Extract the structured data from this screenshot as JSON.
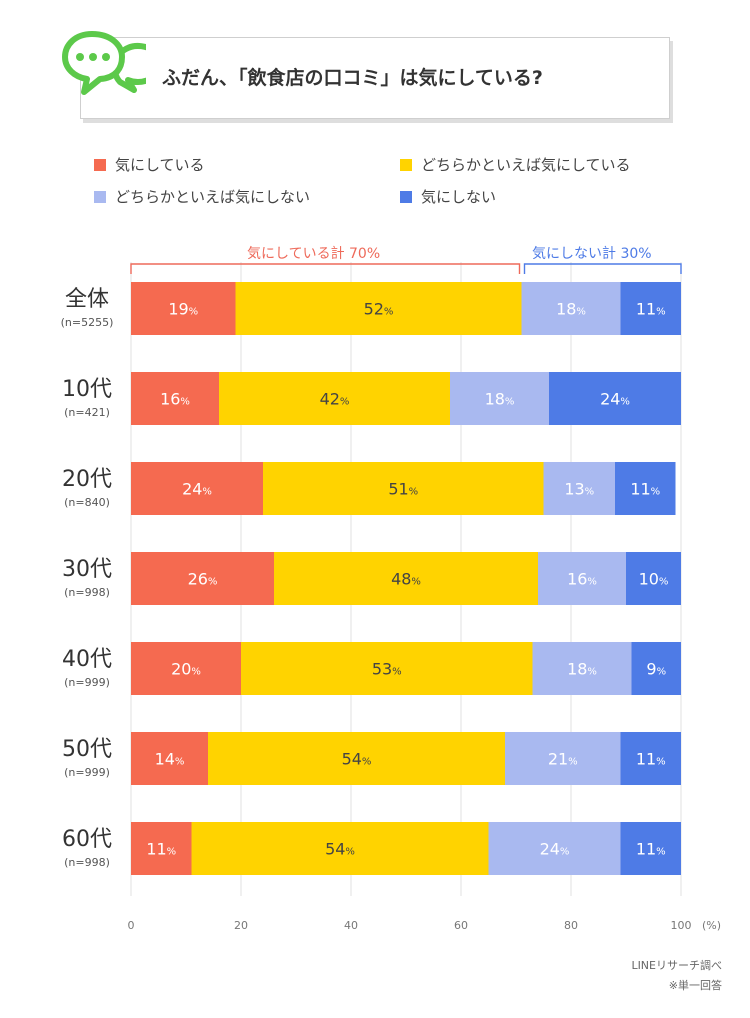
{
  "title": "ふだん、「飲食店の口コミ」は気にしている?",
  "legend": [
    {
      "label": "気にしている",
      "color": "#F56A50"
    },
    {
      "label": "どちらかといえば気にしている",
      "color": "#FFD300"
    },
    {
      "label": "どちらかといえば気にしない",
      "color": "#A9B9F0"
    },
    {
      "label": "気にしない",
      "color": "#4E7BE6"
    }
  ],
  "brackets": {
    "left": {
      "label": "気にしている計 70%",
      "color": "#EE6A5A"
    },
    "right": {
      "label": "気にしない計 30%",
      "color": "#4E7BE6"
    }
  },
  "chart_data": {
    "type": "bar",
    "orientation": "horizontal",
    "stacked": true,
    "categories": [
      "全体",
      "10代",
      "20代",
      "30代",
      "40代",
      "50代",
      "60代"
    ],
    "category_n": [
      "(n=5255)",
      "(n=421)",
      "(n=840)",
      "(n=998)",
      "(n=999)",
      "(n=999)",
      "(n=998)"
    ],
    "series": [
      {
        "name": "気にしている",
        "color": "#F56A50",
        "values": [
          19,
          16,
          24,
          26,
          20,
          14,
          11
        ]
      },
      {
        "name": "どちらかといえば気にしている",
        "color": "#FFD300",
        "values": [
          52,
          42,
          51,
          48,
          53,
          54,
          54
        ]
      },
      {
        "name": "どちらかといえば気にしない",
        "color": "#A9B9F0",
        "values": [
          18,
          18,
          13,
          16,
          18,
          21,
          24
        ]
      },
      {
        "name": "気にしない",
        "color": "#4E7BE6",
        "values": [
          11,
          24,
          11,
          10,
          9,
          11,
          11
        ]
      }
    ],
    "value_suffix": "%",
    "xlim": [
      0,
      100
    ],
    "xticks": [
      "0",
      "20",
      "40",
      "60",
      "80",
      "100"
    ],
    "xunit": "(%)",
    "grid": true
  },
  "footer": {
    "source": "LINEリサーチ調べ",
    "note": "※単一回答"
  }
}
